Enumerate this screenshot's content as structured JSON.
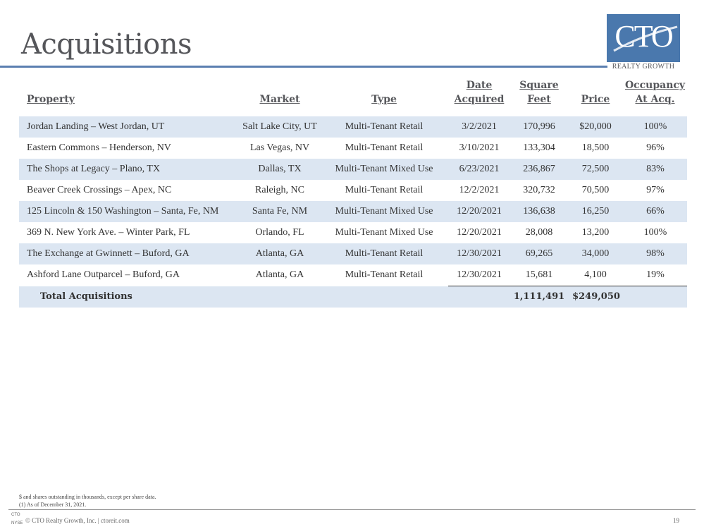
{
  "title": "Acquisitions",
  "logo": {
    "main": "CTO",
    "sub": "REALTY GROWTH"
  },
  "table": {
    "headers": {
      "property": "Property",
      "market": "Market",
      "type": "Type",
      "date_line1": "Date",
      "date_line2": "Acquired",
      "sqft_line1": "Square",
      "sqft_line2": "Feet",
      "price": "Price",
      "occ_line1": "Occupancy",
      "occ_line2": "At Acq."
    },
    "rows": [
      {
        "property": "Jordan Landing – West Jordan, UT",
        "market": "Salt Lake City, UT",
        "type": "Multi-Tenant Retail",
        "date": "3/2/2021",
        "sqft": "170,996",
        "price": "$20,000",
        "occupancy": "100%"
      },
      {
        "property": "Eastern Commons – Henderson, NV",
        "market": "Las Vegas, NV",
        "type": "Multi-Tenant Retail",
        "date": "3/10/2021",
        "sqft": "133,304",
        "price": "18,500",
        "occupancy": "96%"
      },
      {
        "property": "The Shops at Legacy – Plano, TX",
        "market": "Dallas, TX",
        "type": "Multi-Tenant Mixed Use",
        "date": "6/23/2021",
        "sqft": "236,867",
        "price": "72,500",
        "occupancy": "83%"
      },
      {
        "property": "Beaver Creek Crossings – Apex, NC",
        "market": "Raleigh, NC",
        "type": "Multi-Tenant Retail",
        "date": "12/2/2021",
        "sqft": "320,732",
        "price": "70,500",
        "occupancy": "97%"
      },
      {
        "property": "125 Lincoln & 150 Washington – Santa, Fe, NM",
        "market": "Santa Fe, NM",
        "type": "Multi-Tenant Mixed Use",
        "date": "12/20/2021",
        "sqft": "136,638",
        "price": "16,250",
        "occupancy": "66%"
      },
      {
        "property": "369 N. New York Ave.  – Winter Park, FL",
        "market": "Orlando, FL",
        "type": "Multi-Tenant Mixed Use",
        "date": "12/20/2021",
        "sqft": "28,008",
        "price": "13,200",
        "occupancy": "100%"
      },
      {
        "property": "The Exchange at Gwinnett – Buford, GA",
        "market": "Atlanta, GA",
        "type": "Multi-Tenant Retail",
        "date": "12/30/2021",
        "sqft": "69,265",
        "price": "34,000",
        "occupancy": "98%"
      },
      {
        "property": "Ashford Lane Outparcel – Buford, GA",
        "market": "Atlanta, GA",
        "type": "Multi-Tenant Retail",
        "date": "12/30/2021",
        "sqft": "15,681",
        "price": "4,100",
        "occupancy": "19%"
      }
    ],
    "total": {
      "label": "Total Acquisitions",
      "sqft": "1,111,491",
      "price": "$249,050"
    }
  },
  "footnotes": {
    "line1": "$ and shares outstanding in thousands, except per share data.",
    "line2": "(1)   As of December 31, 2021."
  },
  "footer": {
    "logo_top": "CTO",
    "logo_bottom": "NYSE",
    "copyright": "© CTO Realty Growth, Inc. | ctoreit.com",
    "page": "19"
  },
  "colors": {
    "accent": "#4a78ad",
    "row_shade": "#dce6f2",
    "rule": "#5b7fb0"
  }
}
